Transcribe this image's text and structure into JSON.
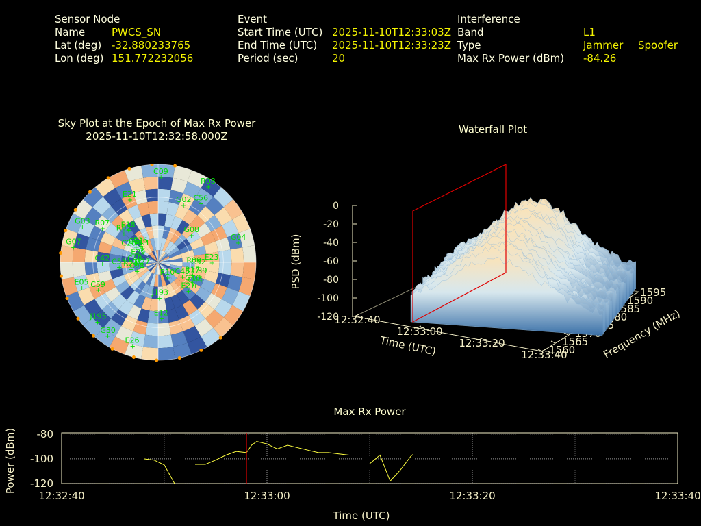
{
  "header": {
    "sensor": {
      "section": "Sensor Node",
      "name_label": "Name",
      "name_value": "PWCS_SN",
      "lat_label": "Lat (deg)",
      "lat_value": "-32.880233765",
      "lon_label": "Lon (deg)",
      "lon_value": "151.772232056"
    },
    "event": {
      "section": "Event",
      "start_label": "Start Time (UTC)",
      "start_value": "2025-11-10T12:33:03Z",
      "end_label": "End Time (UTC)",
      "end_value": "2025-11-10T12:33:23Z",
      "period_label": "Period (sec)",
      "period_value": "20"
    },
    "interference": {
      "section": "Interference",
      "band_label": "Band",
      "band_value": "L1",
      "type_label": "Type",
      "type_value_1": "Jammer",
      "type_value_2": "Spoofer",
      "power_label": "Max Rx Power (dBm)",
      "power_value": "-84.26"
    }
  },
  "colors": {
    "label": "#ffffe0",
    "value": "#f4f400",
    "sat": "#00e000",
    "line": "#ffff40",
    "marker": "#e00000",
    "spoof": "#ff9900"
  },
  "chart_data": [
    {
      "type": "scatter",
      "name": "skyplot",
      "title": "Sky Plot at the Epoch of Max Rx Power",
      "subtitle": "2025-11-10T12:32:58.000Z",
      "satellites": [
        "R02",
        "C45",
        "J195",
        "C09",
        "E05",
        "C08",
        "G08",
        "J193",
        "C39",
        "G30",
        "G02",
        "E29",
        "R24",
        "C55",
        "E12",
        "C20",
        "R07",
        "C43",
        "E23",
        "G27",
        "E26",
        "G16",
        "C59",
        "G04",
        "R10",
        "R08",
        "C56",
        "G03",
        "C52",
        "R01",
        "E18",
        "E26",
        "G31",
        "E21",
        "R09",
        "E27",
        "R17",
        "C42",
        "G07",
        "C44"
      ]
    },
    {
      "type": "area",
      "name": "waterfall",
      "title": "Waterfall Plot",
      "zlabel": "PSD (dBm)",
      "xlabel": "Time (UTC)",
      "ylabel": "Frequency (MHz)",
      "z_ticks": [
        "0",
        "-20",
        "-40",
        "-60",
        "-80",
        "-100",
        "-120"
      ],
      "time_ticks": [
        "12:32:40",
        "12:33:00",
        "12:33:20",
        "12:33:40"
      ],
      "freq_ticks": [
        "1560",
        "1565",
        "1570",
        "1575",
        "1580",
        "1585",
        "1590",
        "1595"
      ]
    },
    {
      "type": "line",
      "name": "max-rx-power",
      "title": "Max Rx Power",
      "xlabel": "Time (UTC)",
      "ylabel": "Power (dBm)",
      "x_ticks": [
        "12:32:40",
        "12:33:00",
        "12:33:20",
        "12:33:40"
      ],
      "y_ticks": [
        "-80",
        "-100",
        "-120"
      ],
      "ylim": [
        -120,
        -79
      ],
      "xlim_sec": [
        0,
        60
      ],
      "segments": [
        [
          [
            8,
            -100
          ],
          [
            9,
            -101
          ],
          [
            10,
            -105
          ],
          [
            11,
            -120
          ]
        ],
        [
          [
            13,
            -104.5
          ],
          [
            14,
            -104.5
          ],
          [
            15,
            -101
          ],
          [
            16,
            -97
          ],
          [
            17,
            -94
          ],
          [
            18,
            -95
          ],
          [
            18.5,
            -89
          ],
          [
            19,
            -86
          ],
          [
            20,
            -88
          ],
          [
            21,
            -92
          ],
          [
            22,
            -89
          ],
          [
            23,
            -91
          ],
          [
            24,
            -93
          ],
          [
            25,
            -95
          ],
          [
            26,
            -95
          ],
          [
            27,
            -96
          ],
          [
            28,
            -97
          ]
        ],
        [
          [
            30,
            -104
          ],
          [
            31,
            -97
          ],
          [
            32,
            -118
          ],
          [
            33,
            -109
          ],
          [
            34,
            -98
          ],
          [
            34.2,
            -96.5
          ]
        ]
      ],
      "marker_x_sec": 18.0
    }
  ]
}
